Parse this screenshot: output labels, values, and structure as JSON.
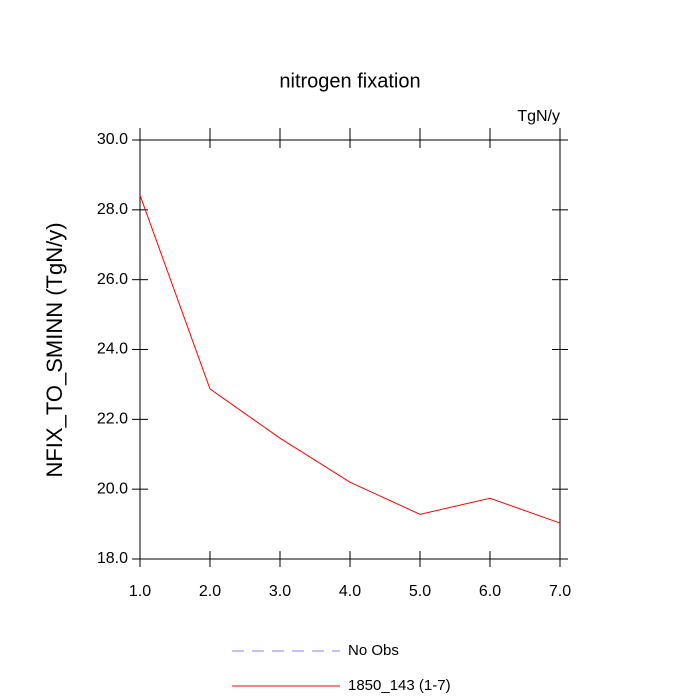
{
  "chart_data": {
    "type": "line",
    "title": "nitrogen fixation",
    "units": "TgN/y",
    "y_label": "NFIX_TO_SMINN  (TgN/y)",
    "x": [
      1,
      2,
      3,
      4,
      5,
      6,
      7
    ],
    "series": [
      {
        "name": "No Obs",
        "color": "#8080ff",
        "dashed": true,
        "values": [
          null,
          null,
          null,
          null,
          null,
          null,
          null
        ]
      },
      {
        "name": "1850_143 (1-7)",
        "color": "#ff0000",
        "dashed": false,
        "values": [
          28.42,
          22.87,
          21.46,
          20.2,
          19.28,
          19.74,
          19.03
        ]
      }
    ],
    "xlim": [
      1,
      7
    ],
    "xticks": [
      {
        "value": 1,
        "label": "1.0"
      },
      {
        "value": 2,
        "label": "2.0"
      },
      {
        "value": 3,
        "label": "3.0"
      },
      {
        "value": 4,
        "label": "4.0"
      },
      {
        "value": 5,
        "label": "5.0"
      },
      {
        "value": 6,
        "label": "6.0"
      },
      {
        "value": 7,
        "label": "7.0"
      }
    ],
    "ylim": [
      18,
      30
    ],
    "yticks": [
      {
        "value": 18,
        "label": "18.0"
      },
      {
        "value": 20,
        "label": "20.0"
      },
      {
        "value": 22,
        "label": "22.0"
      },
      {
        "value": 24,
        "label": "24.0"
      },
      {
        "value": 26,
        "label": "26.0"
      },
      {
        "value": 28,
        "label": "28.0"
      },
      {
        "value": 30,
        "label": "30.0"
      }
    ]
  }
}
